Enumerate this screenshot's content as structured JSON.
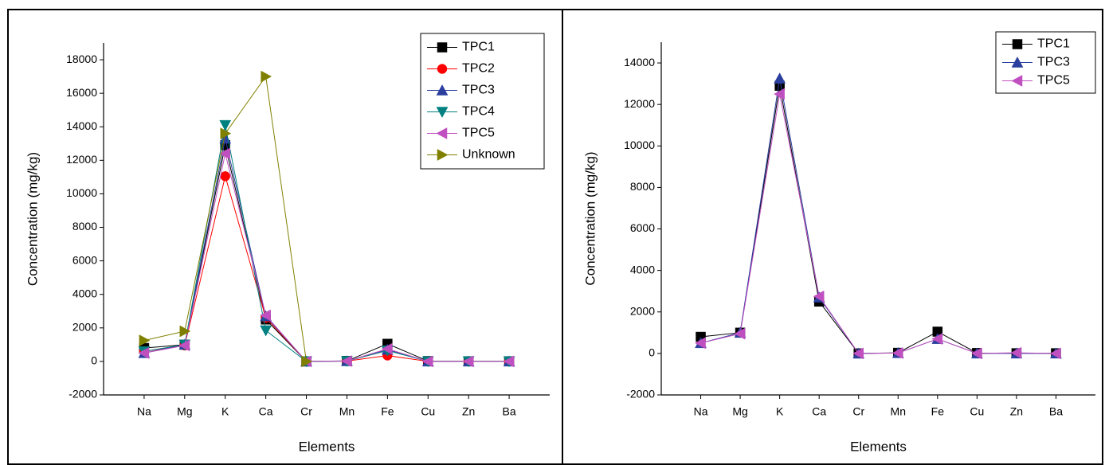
{
  "chart_data": [
    {
      "type": "line",
      "x_label": "Elements",
      "y_label": "Concentration (mg/kg)",
      "categories": [
        "Na",
        "Mg",
        "K",
        "Ca",
        "Cr",
        "Mn",
        "Fe",
        "Cu",
        "Zn",
        "Ba"
      ],
      "ylim": [
        -2000,
        19000
      ],
      "yticks": [
        -2000,
        0,
        2000,
        4000,
        6000,
        8000,
        10000,
        12000,
        14000,
        16000,
        18000
      ],
      "legend": "upper right",
      "series": [
        {
          "name": "TPC1",
          "color": "#000000",
          "marker": "square",
          "values": [
            800,
            1000,
            12900,
            2500,
            0,
            30,
            1050,
            20,
            10,
            10
          ]
        },
        {
          "name": "TPC2",
          "color": "#ff0000",
          "marker": "circle",
          "values": [
            600,
            950,
            11050,
            2600,
            0,
            20,
            350,
            0,
            0,
            0
          ]
        },
        {
          "name": "TPC3",
          "color": "#2b3f9e",
          "marker": "triangle-up",
          "values": [
            500,
            1000,
            13300,
            2700,
            0,
            20,
            700,
            0,
            0,
            0
          ]
        },
        {
          "name": "TPC4",
          "color": "#008080",
          "marker": "triangle-down",
          "values": [
            600,
            1000,
            14100,
            1850,
            0,
            20,
            650,
            0,
            0,
            0
          ]
        },
        {
          "name": "TPC5",
          "color": "#c050c0",
          "marker": "triangle-left",
          "values": [
            500,
            950,
            12400,
            2750,
            0,
            20,
            750,
            0,
            0,
            0
          ]
        },
        {
          "name": "Unknown",
          "color": "#808000",
          "marker": "triangle-right",
          "values": [
            1250,
            1800,
            13600,
            17000,
            0,
            null,
            null,
            null,
            null,
            null
          ]
        }
      ]
    },
    {
      "type": "line",
      "x_label": "Elements",
      "y_label": "Concentration (mg/kg)",
      "categories": [
        "Na",
        "Mg",
        "K",
        "Ca",
        "Cr",
        "Mn",
        "Fe",
        "Cu",
        "Zn",
        "Ba"
      ],
      "ylim": [
        -2000,
        15000
      ],
      "yticks": [
        -2000,
        0,
        2000,
        4000,
        6000,
        8000,
        10000,
        12000,
        14000
      ],
      "legend": "upper right",
      "series": [
        {
          "name": "TPC1",
          "color": "#000000",
          "marker": "square",
          "values": [
            800,
            1000,
            12900,
            2500,
            0,
            30,
            1050,
            20,
            10,
            10
          ]
        },
        {
          "name": "TPC3",
          "color": "#2b3f9e",
          "marker": "triangle-up",
          "values": [
            500,
            1000,
            13250,
            2700,
            0,
            20,
            700,
            0,
            0,
            0
          ]
        },
        {
          "name": "TPC5",
          "color": "#c050c0",
          "marker": "triangle-left",
          "values": [
            500,
            950,
            12500,
            2750,
            0,
            20,
            700,
            0,
            30,
            0
          ]
        }
      ]
    }
  ]
}
